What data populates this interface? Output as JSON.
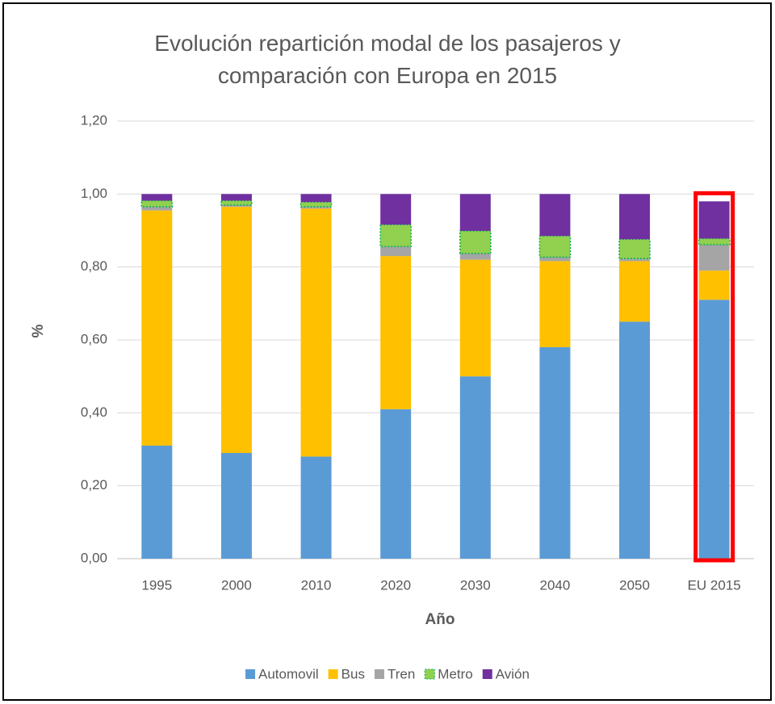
{
  "chart_data": {
    "type": "stacked_bar",
    "title": "Evolución repartición modal de los pasajeros y comparación con Europa en 2015",
    "x_label": "Año",
    "y_label": "%",
    "categories": [
      "1995",
      "2000",
      "2010",
      "2020",
      "2030",
      "2040",
      "2050",
      "EU  2015"
    ],
    "series": [
      {
        "name": "Automovil",
        "color": "#5b9bd5",
        "values": [
          0.31,
          0.29,
          0.28,
          0.41,
          0.5,
          0.58,
          0.65,
          0.71
        ]
      },
      {
        "name": "Bus",
        "color": "#ffc000",
        "values": [
          0.645,
          0.675,
          0.68,
          0.42,
          0.32,
          0.236,
          0.166,
          0.08
        ]
      },
      {
        "name": "Tren",
        "color": "#a5a5a5",
        "values": [
          0.01,
          0.005,
          0.005,
          0.026,
          0.017,
          0.011,
          0.007,
          0.071
        ]
      },
      {
        "name": "Metro",
        "color": "#92d050",
        "values": [
          0.017,
          0.012,
          0.013,
          0.06,
          0.062,
          0.058,
          0.053,
          0.017
        ]
      },
      {
        "name": "Avión",
        "color": "#7030a0",
        "values": [
          0.018,
          0.018,
          0.022,
          0.084,
          0.101,
          0.115,
          0.124,
          0.102
        ]
      }
    ],
    "ylim": [
      0,
      1.2
    ],
    "yticks": [
      {
        "value": 0,
        "label": "0,00"
      },
      {
        "value": 0.2,
        "label": "0,20"
      },
      {
        "value": 0.4,
        "label": "0,40"
      },
      {
        "value": 0.6,
        "label": "0,60"
      },
      {
        "value": 0.8,
        "label": "0,80"
      },
      {
        "value": 1,
        "label": "1,00"
      },
      {
        "value": 1.2,
        "label": "1,20"
      }
    ],
    "grid": true,
    "legend": "bottom"
  }
}
